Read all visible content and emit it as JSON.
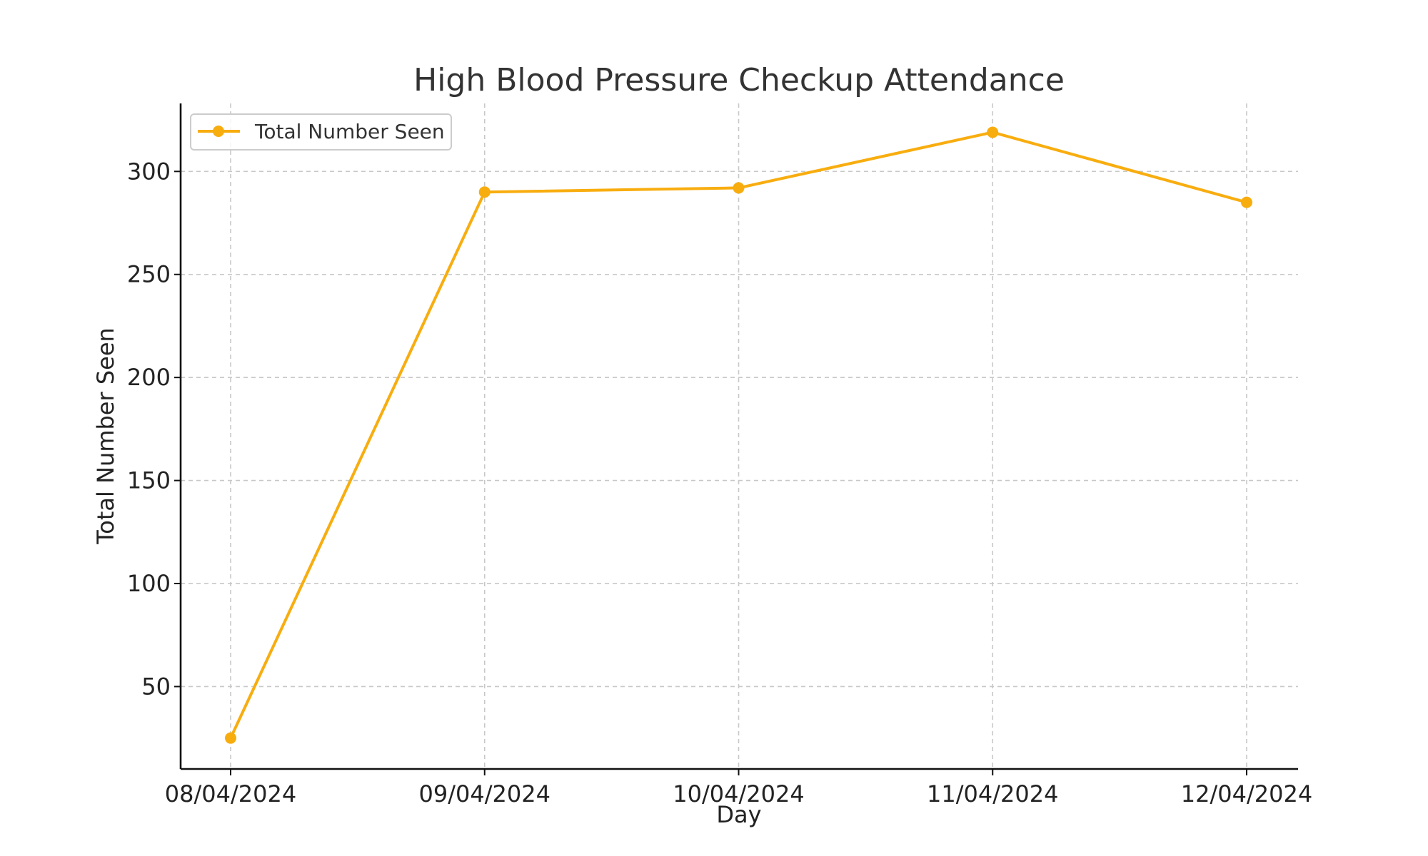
{
  "colors": {
    "series": "#f8ad0f",
    "grid": "#c8c8c8",
    "axis": "#111111",
    "text": "#333333"
  },
  "chart_data": {
    "type": "line",
    "title": "High Blood Pressure Checkup Attendance",
    "xlabel": "Day",
    "ylabel": "Total Number Seen",
    "x": [
      "08/04/2024",
      "09/04/2024",
      "10/04/2024",
      "11/04/2024",
      "12/04/2024"
    ],
    "series": [
      {
        "name": "Total Number Seen",
        "values": [
          25,
          290,
          292,
          319,
          285
        ],
        "color": "#f8ad0f",
        "marker": "circle"
      }
    ],
    "yticks": [
      50,
      100,
      150,
      200,
      250,
      300
    ],
    "ylim": [
      10,
      333
    ],
    "grid": true,
    "grid_style": "dashed",
    "legend": "top-left"
  }
}
